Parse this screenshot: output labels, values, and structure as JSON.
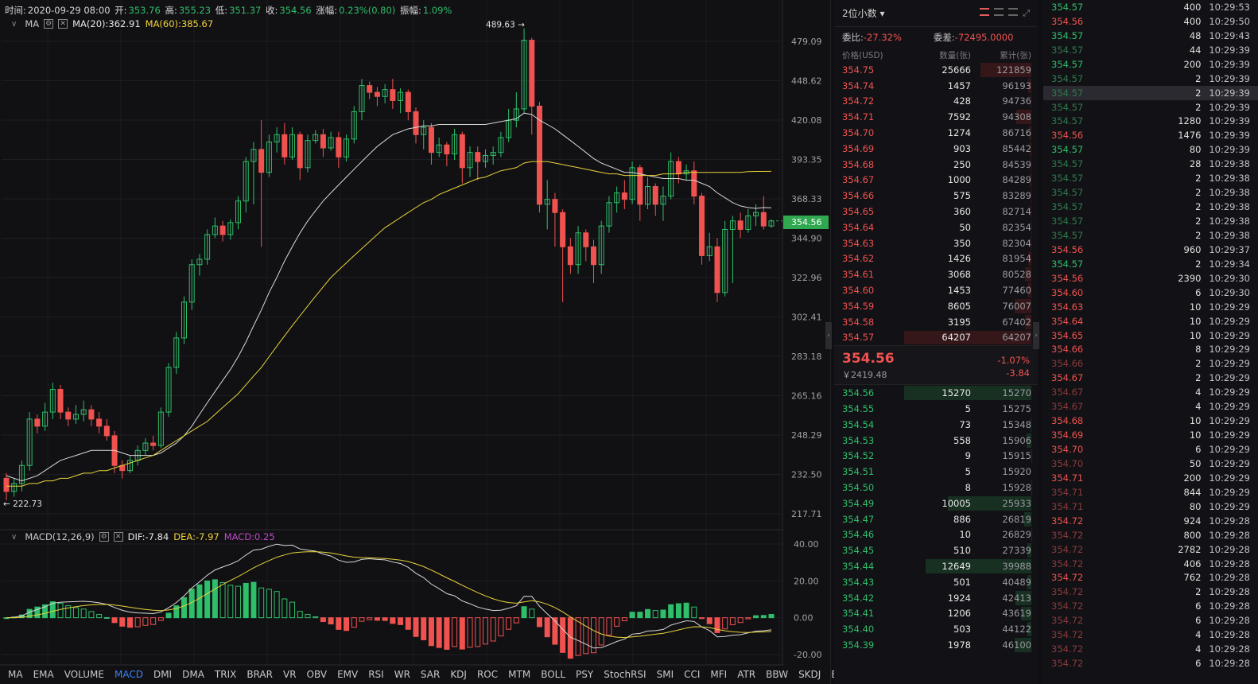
{
  "chart": {
    "info": {
      "time_label": "时间:",
      "time": "2020-09-29 08:00",
      "open_label": "开:",
      "open": "353.76",
      "high_label": "高:",
      "high": "355.23",
      "low_label": "低:",
      "low": "351.37",
      "close_label": "收:",
      "close": "354.56",
      "chg_label": "涨幅:",
      "chg": "0.23%(0.80)",
      "amp_label": "振幅:",
      "amp": "1.09%"
    },
    "ma_legend": {
      "name": "MA",
      "ma20": "MA(20):362.91",
      "ma60": "MA(60):385.67"
    },
    "macd_legend": {
      "name": "MACD(12,26,9)",
      "dif": "DIF:-7.84",
      "dea": "DEA:-7.97",
      "macd": "MACD:0.25"
    },
    "price_axis": [
      "479.09",
      "448.62",
      "420.08",
      "393.35",
      "368.33",
      "344.90",
      "322.96",
      "302.41",
      "283.18",
      "265.16",
      "248.29",
      "232.50",
      "217.71"
    ],
    "macd_axis": [
      "40.00",
      "20.00",
      "0.00",
      "-20.00"
    ],
    "high_marker": "489.63 →",
    "low_marker": "← 222.73",
    "current_price_tag": "354.56",
    "indicator_tabs": [
      "MA",
      "EMA",
      "VOLUME",
      "MACD",
      "DMI",
      "DMA",
      "TRIX",
      "BRAR",
      "VR",
      "OBV",
      "EMV",
      "RSI",
      "WR",
      "SAR",
      "KDJ",
      "ROC",
      "MTM",
      "BOLL",
      "PSY",
      "StochRSI",
      "SMI",
      "CCI",
      "MFI",
      "ATR",
      "BBW",
      "SKDJ",
      "BIAS"
    ],
    "active_tab": "MACD",
    "colors": {
      "up": "#2fbe6a",
      "down": "#f0524f",
      "ma20": "#d8d8d8",
      "ma60": "#e8d23a"
    }
  },
  "orderbook": {
    "precision": "2位小数",
    "ratio_label": "委比:",
    "ratio": "-27.32%",
    "diff_label": "委差:",
    "diff": "-72495.0000",
    "cols": [
      "价格(USD)",
      "数量(张)",
      "累计(张)"
    ],
    "asks": [
      {
        "p": "354.75",
        "q": "25666",
        "c": "121859"
      },
      {
        "p": "354.74",
        "q": "1457",
        "c": "96193"
      },
      {
        "p": "354.72",
        "q": "428",
        "c": "94736"
      },
      {
        "p": "354.71",
        "q": "7592",
        "c": "94308"
      },
      {
        "p": "354.70",
        "q": "1274",
        "c": "86716"
      },
      {
        "p": "354.69",
        "q": "903",
        "c": "85442"
      },
      {
        "p": "354.68",
        "q": "250",
        "c": "84539"
      },
      {
        "p": "354.67",
        "q": "1000",
        "c": "84289"
      },
      {
        "p": "354.66",
        "q": "575",
        "c": "83289"
      },
      {
        "p": "354.65",
        "q": "360",
        "c": "82714"
      },
      {
        "p": "354.64",
        "q": "50",
        "c": "82354"
      },
      {
        "p": "354.63",
        "q": "350",
        "c": "82304"
      },
      {
        "p": "354.62",
        "q": "1426",
        "c": "81954"
      },
      {
        "p": "354.61",
        "q": "3068",
        "c": "80528"
      },
      {
        "p": "354.60",
        "q": "1453",
        "c": "77460"
      },
      {
        "p": "354.59",
        "q": "8605",
        "c": "76007"
      },
      {
        "p": "354.58",
        "q": "3195",
        "c": "67402"
      },
      {
        "p": "354.57",
        "q": "64207",
        "c": "64207"
      }
    ],
    "last_price": "354.56",
    "last_cny": "￥2419.48",
    "change_pct": "-1.07%",
    "change_abs": "-3.84",
    "bids": [
      {
        "p": "354.56",
        "q": "15270",
        "c": "15270"
      },
      {
        "p": "354.55",
        "q": "5",
        "c": "15275"
      },
      {
        "p": "354.54",
        "q": "73",
        "c": "15348"
      },
      {
        "p": "354.53",
        "q": "558",
        "c": "15906"
      },
      {
        "p": "354.52",
        "q": "9",
        "c": "15915"
      },
      {
        "p": "354.51",
        "q": "5",
        "c": "15920"
      },
      {
        "p": "354.50",
        "q": "8",
        "c": "15928"
      },
      {
        "p": "354.49",
        "q": "10005",
        "c": "25933"
      },
      {
        "p": "354.47",
        "q": "886",
        "c": "26819"
      },
      {
        "p": "354.46",
        "q": "10",
        "c": "26829"
      },
      {
        "p": "354.45",
        "q": "510",
        "c": "27339"
      },
      {
        "p": "354.44",
        "q": "12649",
        "c": "39988"
      },
      {
        "p": "354.43",
        "q": "501",
        "c": "40489"
      },
      {
        "p": "354.42",
        "q": "1924",
        "c": "42413"
      },
      {
        "p": "354.41",
        "q": "1206",
        "c": "43619"
      },
      {
        "p": "354.40",
        "q": "503",
        "c": "44122"
      },
      {
        "p": "354.39",
        "q": "1978",
        "c": "46100"
      }
    ]
  },
  "trades": [
    {
      "p": "354.57",
      "q": "400",
      "t": "10:29:53",
      "side": "g"
    },
    {
      "p": "354.56",
      "q": "400",
      "t": "10:29:50",
      "side": "r"
    },
    {
      "p": "354.57",
      "q": "48",
      "t": "10:29:43",
      "side": "g"
    },
    {
      "p": "354.57",
      "q": "44",
      "t": "10:29:39",
      "side": "g",
      "dim": true
    },
    {
      "p": "354.57",
      "q": "200",
      "t": "10:29:39",
      "side": "g"
    },
    {
      "p": "354.57",
      "q": "2",
      "t": "10:29:39",
      "side": "g",
      "dim": true
    },
    {
      "p": "354.57",
      "q": "2",
      "t": "10:29:39",
      "side": "g",
      "dim": true,
      "sel": true
    },
    {
      "p": "354.57",
      "q": "2",
      "t": "10:29:39",
      "side": "g",
      "dim": true
    },
    {
      "p": "354.57",
      "q": "1280",
      "t": "10:29:39",
      "side": "g",
      "dim": true
    },
    {
      "p": "354.56",
      "q": "1476",
      "t": "10:29:39",
      "side": "r"
    },
    {
      "p": "354.57",
      "q": "80",
      "t": "10:29:39",
      "side": "g"
    },
    {
      "p": "354.57",
      "q": "28",
      "t": "10:29:38",
      "side": "g",
      "dim": true
    },
    {
      "p": "354.57",
      "q": "2",
      "t": "10:29:38",
      "side": "g",
      "dim": true
    },
    {
      "p": "354.57",
      "q": "2",
      "t": "10:29:38",
      "side": "g",
      "dim": true
    },
    {
      "p": "354.57",
      "q": "2",
      "t": "10:29:38",
      "side": "g",
      "dim": true
    },
    {
      "p": "354.57",
      "q": "2",
      "t": "10:29:38",
      "side": "g",
      "dim": true
    },
    {
      "p": "354.57",
      "q": "2",
      "t": "10:29:38",
      "side": "g",
      "dim": true
    },
    {
      "p": "354.56",
      "q": "960",
      "t": "10:29:37",
      "side": "r"
    },
    {
      "p": "354.57",
      "q": "2",
      "t": "10:29:34",
      "side": "g"
    },
    {
      "p": "354.56",
      "q": "2390",
      "t": "10:29:30",
      "side": "r"
    },
    {
      "p": "354.60",
      "q": "6",
      "t": "10:29:30",
      "side": "r"
    },
    {
      "p": "354.63",
      "q": "10",
      "t": "10:29:29",
      "side": "r"
    },
    {
      "p": "354.64",
      "q": "10",
      "t": "10:29:29",
      "side": "r"
    },
    {
      "p": "354.65",
      "q": "10",
      "t": "10:29:29",
      "side": "r"
    },
    {
      "p": "354.66",
      "q": "8",
      "t": "10:29:29",
      "side": "r"
    },
    {
      "p": "354.66",
      "q": "2",
      "t": "10:29:29",
      "side": "r",
      "dim": true
    },
    {
      "p": "354.67",
      "q": "2",
      "t": "10:29:29",
      "side": "r"
    },
    {
      "p": "354.67",
      "q": "4",
      "t": "10:29:29",
      "side": "r",
      "dim": true
    },
    {
      "p": "354.67",
      "q": "4",
      "t": "10:29:29",
      "side": "r",
      "dim": true
    },
    {
      "p": "354.68",
      "q": "10",
      "t": "10:29:29",
      "side": "r"
    },
    {
      "p": "354.69",
      "q": "10",
      "t": "10:29:29",
      "side": "r"
    },
    {
      "p": "354.70",
      "q": "6",
      "t": "10:29:29",
      "side": "r"
    },
    {
      "p": "354.70",
      "q": "50",
      "t": "10:29:29",
      "side": "r",
      "dim": true
    },
    {
      "p": "354.71",
      "q": "200",
      "t": "10:29:29",
      "side": "r"
    },
    {
      "p": "354.71",
      "q": "844",
      "t": "10:29:29",
      "side": "r",
      "dim": true
    },
    {
      "p": "354.71",
      "q": "80",
      "t": "10:29:29",
      "side": "r",
      "dim": true
    },
    {
      "p": "354.72",
      "q": "924",
      "t": "10:29:28",
      "side": "r"
    },
    {
      "p": "354.72",
      "q": "800",
      "t": "10:29:28",
      "side": "r",
      "dim": true
    },
    {
      "p": "354.72",
      "q": "2782",
      "t": "10:29:28",
      "side": "r",
      "dim": true
    },
    {
      "p": "354.72",
      "q": "406",
      "t": "10:29:28",
      "side": "r",
      "dim": true
    },
    {
      "p": "354.72",
      "q": "762",
      "t": "10:29:28",
      "side": "r"
    },
    {
      "p": "354.72",
      "q": "2",
      "t": "10:29:28",
      "side": "r",
      "dim": true
    },
    {
      "p": "354.72",
      "q": "6",
      "t": "10:29:28",
      "side": "r",
      "dim": true
    },
    {
      "p": "354.72",
      "q": "6",
      "t": "10:29:28",
      "side": "r",
      "dim": true
    },
    {
      "p": "354.72",
      "q": "4",
      "t": "10:29:28",
      "side": "r",
      "dim": true
    },
    {
      "p": "354.72",
      "q": "4",
      "t": "10:29:28",
      "side": "r",
      "dim": true
    },
    {
      "p": "354.72",
      "q": "6",
      "t": "10:29:28",
      "side": "r",
      "dim": true
    }
  ],
  "chart_data": {
    "type": "candlestick",
    "title": "",
    "ylabel": "",
    "ylim": [
      217.71,
      489.63
    ],
    "candles": [
      [
        231,
        226,
        233,
        222.73
      ],
      [
        226,
        229,
        231,
        224
      ],
      [
        229,
        236,
        238,
        226
      ],
      [
        236,
        255,
        258,
        234
      ],
      [
        255,
        252,
        257,
        249
      ],
      [
        252,
        258,
        262,
        250
      ],
      [
        258,
        268,
        271,
        255
      ],
      [
        268,
        258,
        270,
        255
      ],
      [
        258,
        255,
        260,
        252
      ],
      [
        255,
        257,
        261,
        253
      ],
      [
        257,
        259,
        263,
        254
      ],
      [
        259,
        255,
        261,
        252
      ],
      [
        255,
        252,
        258,
        249
      ],
      [
        252,
        248,
        255,
        246
      ],
      [
        248,
        236,
        250,
        233
      ],
      [
        236,
        234,
        238,
        231
      ],
      [
        234,
        238,
        240,
        233
      ],
      [
        238,
        242,
        244,
        236
      ],
      [
        242,
        245,
        247,
        240
      ],
      [
        245,
        244,
        248,
        242
      ],
      [
        244,
        258,
        260,
        243
      ],
      [
        258,
        278,
        280,
        256
      ],
      [
        278,
        292,
        295,
        275
      ],
      [
        292,
        310,
        313,
        289
      ],
      [
        310,
        330,
        333,
        306
      ],
      [
        330,
        333,
        336,
        324
      ],
      [
        333,
        347,
        350,
        330
      ],
      [
        347,
        352,
        357,
        345
      ],
      [
        352,
        347,
        355,
        343
      ],
      [
        347,
        354,
        356,
        344
      ],
      [
        354,
        367,
        370,
        350
      ],
      [
        367,
        392,
        395,
        360
      ],
      [
        392,
        400,
        405,
        365
      ],
      [
        400,
        385,
        420,
        340
      ],
      [
        385,
        405,
        410,
        382
      ],
      [
        405,
        410,
        415,
        398
      ],
      [
        410,
        395,
        418,
        390
      ],
      [
        395,
        410,
        415,
        393
      ],
      [
        410,
        388,
        412,
        380
      ],
      [
        388,
        406,
        410,
        385
      ],
      [
        406,
        410,
        413,
        404
      ],
      [
        410,
        401,
        414,
        395
      ],
      [
        401,
        408,
        412,
        399
      ],
      [
        408,
        395,
        412,
        388
      ],
      [
        395,
        407,
        410,
        392
      ],
      [
        407,
        426,
        430,
        404
      ],
      [
        426,
        445,
        450,
        420
      ],
      [
        445,
        440,
        448,
        435
      ],
      [
        440,
        437,
        444,
        430
      ],
      [
        437,
        442,
        446,
        432
      ],
      [
        442,
        434,
        450,
        428
      ],
      [
        434,
        440,
        443,
        425
      ],
      [
        440,
        426,
        442,
        420
      ],
      [
        426,
        410,
        429,
        404
      ],
      [
        410,
        415,
        420,
        400
      ],
      [
        415,
        398,
        418,
        390
      ],
      [
        398,
        403,
        408,
        395
      ],
      [
        403,
        397,
        405,
        389
      ],
      [
        397,
        410,
        414,
        393
      ],
      [
        410,
        388,
        412,
        378
      ],
      [
        388,
        398,
        402,
        382
      ],
      [
        398,
        392,
        402,
        380
      ],
      [
        392,
        396,
        400,
        388
      ],
      [
        396,
        398,
        402,
        390
      ],
      [
        398,
        408,
        412,
        395
      ],
      [
        408,
        420,
        428,
        405
      ],
      [
        420,
        428,
        440,
        415
      ],
      [
        428,
        480,
        489.63,
        425
      ],
      [
        480,
        430,
        482,
        410
      ],
      [
        430,
        365,
        433,
        360
      ],
      [
        365,
        368,
        380,
        350
      ],
      [
        368,
        360,
        372,
        340
      ],
      [
        360,
        340,
        362,
        310
      ],
      [
        340,
        330,
        345,
        325
      ],
      [
        330,
        348,
        352,
        325
      ],
      [
        348,
        340,
        350,
        332
      ],
      [
        340,
        330,
        344,
        320
      ],
      [
        330,
        352,
        355,
        325
      ],
      [
        352,
        366,
        370,
        348
      ],
      [
        366,
        372,
        376,
        360
      ],
      [
        372,
        368,
        380,
        362
      ],
      [
        368,
        388,
        392,
        365
      ],
      [
        388,
        365,
        390,
        355
      ],
      [
        365,
        376,
        382,
        362
      ],
      [
        376,
        365,
        378,
        358
      ],
      [
        365,
        370,
        376,
        355
      ],
      [
        370,
        392,
        398,
        368
      ],
      [
        392,
        384,
        395,
        378
      ],
      [
        384,
        386,
        390,
        380
      ],
      [
        386,
        370,
        392,
        365
      ],
      [
        370,
        335,
        372,
        330
      ],
      [
        335,
        340,
        348,
        332
      ],
      [
        340,
        315,
        345,
        310
      ],
      [
        315,
        350,
        355,
        313
      ],
      [
        350,
        355,
        358,
        320
      ],
      [
        355,
        350,
        360,
        345
      ],
      [
        350,
        358,
        362,
        348
      ],
      [
        358,
        360,
        365,
        352
      ],
      [
        360,
        352,
        370,
        350
      ],
      [
        352,
        355,
        356,
        351
      ]
    ],
    "ma20": [
      232,
      231,
      230,
      231,
      232,
      234,
      236,
      238,
      239,
      240,
      241,
      242,
      242,
      242,
      242,
      241,
      240,
      240,
      240,
      240,
      241,
      243,
      245,
      248,
      252,
      257,
      262,
      267,
      272,
      277,
      283,
      290,
      298,
      306,
      315,
      323,
      332,
      340,
      348,
      355,
      361,
      367,
      372,
      377,
      382,
      387,
      392,
      397,
      402,
      406,
      410,
      412,
      414,
      415,
      416,
      416,
      417,
      417,
      417,
      417,
      417,
      417,
      417,
      418,
      419,
      420,
      421,
      425,
      424,
      420,
      417,
      414,
      410,
      406,
      402,
      398,
      394,
      391,
      389,
      387,
      385,
      385,
      384,
      383,
      382,
      381,
      381,
      381,
      380,
      380,
      378,
      376,
      372,
      369,
      366,
      364,
      363,
      362.5,
      363,
      362.91
    ],
    "ma60": [
      228,
      228,
      228,
      229,
      229,
      230,
      230,
      231,
      231,
      232,
      233,
      233,
      234,
      234,
      235,
      236,
      237,
      238,
      239,
      240,
      242,
      244,
      246,
      248,
      250,
      252,
      254,
      257,
      260,
      263,
      266,
      270,
      274,
      278,
      283,
      288,
      293,
      298,
      303,
      308,
      313,
      318,
      323,
      327,
      331,
      335,
      339,
      343,
      347,
      351,
      354,
      357,
      360,
      363,
      366,
      368,
      371,
      373,
      375,
      377,
      379,
      381,
      382,
      384,
      386,
      387,
      388,
      391,
      392,
      392,
      392,
      391,
      390,
      389,
      388,
      387,
      386,
      385,
      384,
      384,
      383,
      383,
      383,
      383,
      383,
      384,
      384,
      384,
      385,
      385,
      385,
      385,
      385,
      385,
      385,
      385,
      385.5,
      385.6,
      385.6,
      385.67
    ],
    "macd": {
      "ylim": [
        -25,
        45
      ]
    }
  }
}
